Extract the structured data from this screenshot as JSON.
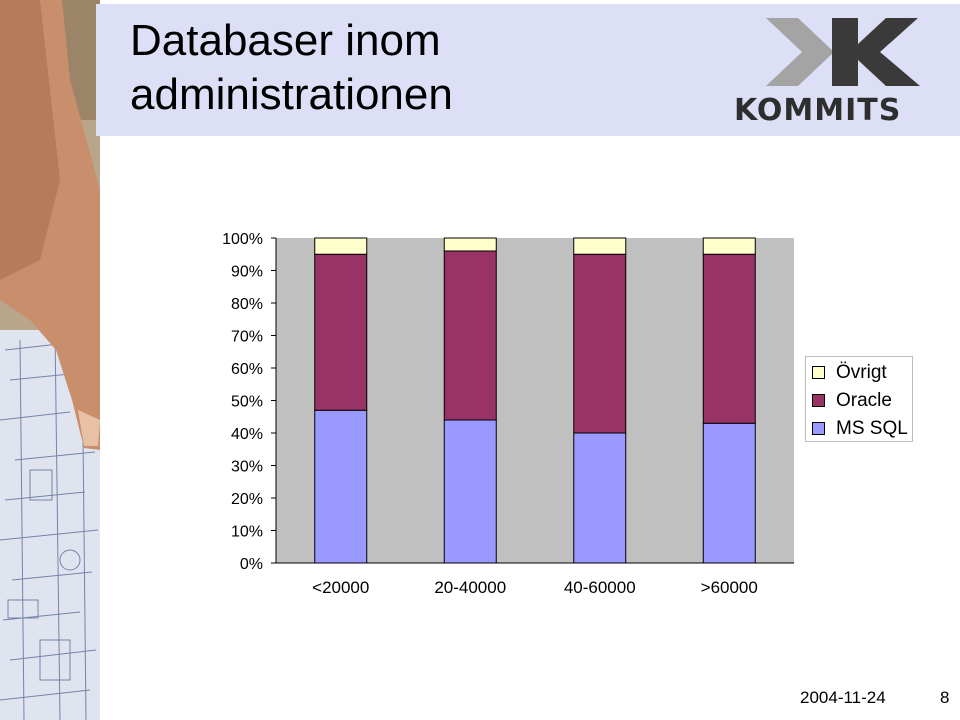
{
  "slide": {
    "title_line1": "Databaser inom",
    "title_line2": "administrationen",
    "logo_text": "KOMMITS",
    "date": "2004-11-24",
    "page_number": "8"
  },
  "colors": {
    "title_band": "#dcdff6",
    "plot_background": "#c0c0c0",
    "ms_sql": "#9999ff",
    "oracle": "#993366",
    "ovrigt": "#ffffcc"
  },
  "chart_data": {
    "type": "bar",
    "stacked": true,
    "percent": true,
    "categories": [
      "<20000",
      "20-40000",
      "40-60000",
      ">60000"
    ],
    "series": [
      {
        "name": "MS SQL",
        "values": [
          47,
          44,
          40,
          43
        ],
        "color": "#9999ff"
      },
      {
        "name": "Oracle",
        "values": [
          48,
          52,
          55,
          52
        ],
        "color": "#993366"
      },
      {
        "name": "Övrigt",
        "values": [
          5,
          4,
          5,
          5
        ],
        "color": "#ffffcc"
      }
    ],
    "yticks": [
      "0%",
      "10%",
      "20%",
      "30%",
      "40%",
      "50%",
      "60%",
      "70%",
      "80%",
      "90%",
      "100%"
    ],
    "ylim": [
      0,
      100
    ],
    "legend_order": [
      "Övrigt",
      "Oracle",
      "MS SQL"
    ],
    "legend_position": "right",
    "grid": false
  }
}
